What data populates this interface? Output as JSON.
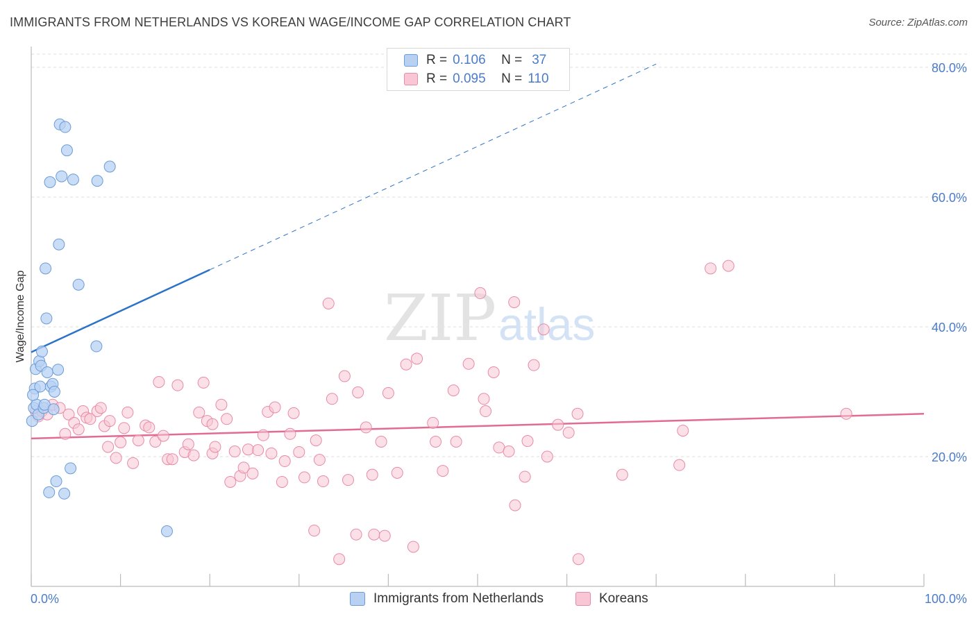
{
  "header": {
    "title": "IMMIGRANTS FROM NETHERLANDS VS KOREAN WAGE/INCOME GAP CORRELATION CHART",
    "source": "Source: ZipAtlas.com"
  },
  "watermark": {
    "zip": "ZIP",
    "atlas": "atlas"
  },
  "legend": {
    "rows": [
      {
        "r_label": "R =",
        "r_value": "0.106",
        "n_label": "N =",
        "n_value": "37"
      },
      {
        "r_label": "R =",
        "r_value": "0.095",
        "n_label": "N =",
        "n_value": "110"
      }
    ]
  },
  "bottom_legend": {
    "items": [
      {
        "label": "Immigrants from Netherlands"
      },
      {
        "label": "Koreans"
      }
    ]
  },
  "colors": {
    "blue_fill": "#b8d1f3",
    "blue_stroke": "#6b9bd8",
    "blue_line": "#2b72c9",
    "pink_fill": "#f8c6d4",
    "pink_stroke": "#e88aa6",
    "pink_line": "#e36a93",
    "tick_label": "#4a7cc9",
    "grid": "#dddddd"
  },
  "chart_data": {
    "type": "scatter",
    "title": "IMMIGRANTS FROM NETHERLANDS VS KOREAN WAGE/INCOME GAP CORRELATION CHART",
    "xlabel": "",
    "ylabel": "Wage/Income Gap",
    "xlim": [
      0,
      100
    ],
    "ylim": [
      0,
      82
    ],
    "x_tick_labels": [
      "0.0%",
      "100.0%"
    ],
    "y_ticks": [
      20,
      40,
      60,
      80
    ],
    "y_tick_labels": [
      "20.0%",
      "40.0%",
      "60.0%",
      "80.0%"
    ],
    "grid": true,
    "legend_position": "top-center",
    "series": [
      {
        "name": "Immigrants from Netherlands",
        "color": "#6b9bd8",
        "points": [
          [
            0.1,
            25.5
          ],
          [
            0.3,
            27.5
          ],
          [
            0.4,
            30.5
          ],
          [
            0.5,
            33.5
          ],
          [
            0.6,
            28.0
          ],
          [
            0.8,
            26.5
          ],
          [
            0.9,
            34.7
          ],
          [
            1.0,
            30.8
          ],
          [
            1.1,
            34.0
          ],
          [
            1.2,
            36.2
          ],
          [
            1.4,
            27.5
          ],
          [
            1.5,
            28.0
          ],
          [
            1.6,
            49.0
          ],
          [
            1.7,
            41.3
          ],
          [
            1.8,
            33.0
          ],
          [
            2.0,
            14.5
          ],
          [
            2.1,
            62.3
          ],
          [
            2.2,
            30.8
          ],
          [
            2.4,
            31.2
          ],
          [
            2.5,
            27.3
          ],
          [
            2.6,
            30.0
          ],
          [
            2.8,
            16.2
          ],
          [
            3.0,
            33.4
          ],
          [
            3.1,
            52.7
          ],
          [
            3.2,
            71.2
          ],
          [
            3.4,
            63.2
          ],
          [
            3.7,
            14.3
          ],
          [
            3.8,
            70.8
          ],
          [
            4.0,
            67.2
          ],
          [
            4.4,
            18.2
          ],
          [
            4.7,
            62.7
          ],
          [
            5.3,
            46.5
          ],
          [
            7.3,
            37.0
          ],
          [
            7.4,
            62.5
          ],
          [
            8.8,
            64.7
          ],
          [
            15.2,
            8.5
          ],
          [
            0.2,
            29.5
          ]
        ]
      },
      {
        "name": "Koreans",
        "color": "#e88aa6",
        "points": [
          [
            0.5,
            27.0
          ],
          [
            0.8,
            26.2
          ],
          [
            1.2,
            27.0
          ],
          [
            1.8,
            26.5
          ],
          [
            2.4,
            28.0
          ],
          [
            3.2,
            27.5
          ],
          [
            3.8,
            23.5
          ],
          [
            4.2,
            26.5
          ],
          [
            4.8,
            25.2
          ],
          [
            5.3,
            24.2
          ],
          [
            5.8,
            27.0
          ],
          [
            6.2,
            26.0
          ],
          [
            6.6,
            25.8
          ],
          [
            7.4,
            27.0
          ],
          [
            7.8,
            27.5
          ],
          [
            8.2,
            24.7
          ],
          [
            8.8,
            25.5
          ],
          [
            9.5,
            19.8
          ],
          [
            10.0,
            22.2
          ],
          [
            10.4,
            24.4
          ],
          [
            10.8,
            26.8
          ],
          [
            11.4,
            19.0
          ],
          [
            12.0,
            22.5
          ],
          [
            12.8,
            24.8
          ],
          [
            13.2,
            24.5
          ],
          [
            13.9,
            22.3
          ],
          [
            14.3,
            31.5
          ],
          [
            14.8,
            23.2
          ],
          [
            15.3,
            19.6
          ],
          [
            15.8,
            19.6
          ],
          [
            16.4,
            31.0
          ],
          [
            17.2,
            20.7
          ],
          [
            17.6,
            21.9
          ],
          [
            18.2,
            20.2
          ],
          [
            18.8,
            26.8
          ],
          [
            19.3,
            31.4
          ],
          [
            19.7,
            25.5
          ],
          [
            20.3,
            20.5
          ],
          [
            20.6,
            21.5
          ],
          [
            21.3,
            28.0
          ],
          [
            21.9,
            25.8
          ],
          [
            22.3,
            16.1
          ],
          [
            22.8,
            20.8
          ],
          [
            23.4,
            17.0
          ],
          [
            23.8,
            18.3
          ],
          [
            24.3,
            21.1
          ],
          [
            24.8,
            17.4
          ],
          [
            25.4,
            21.0
          ],
          [
            26.0,
            23.3
          ],
          [
            26.5,
            26.9
          ],
          [
            26.9,
            20.5
          ],
          [
            27.3,
            27.6
          ],
          [
            28.1,
            16.1
          ],
          [
            28.4,
            19.3
          ],
          [
            29.0,
            23.5
          ],
          [
            29.4,
            26.7
          ],
          [
            30.0,
            20.7
          ],
          [
            30.6,
            16.8
          ],
          [
            31.7,
            8.6
          ],
          [
            31.9,
            22.5
          ],
          [
            32.3,
            19.5
          ],
          [
            32.7,
            16.2
          ],
          [
            33.3,
            43.6
          ],
          [
            33.7,
            28.9
          ],
          [
            34.5,
            4.2
          ],
          [
            35.1,
            32.4
          ],
          [
            35.5,
            16.4
          ],
          [
            36.4,
            8.0
          ],
          [
            36.6,
            29.9
          ],
          [
            37.5,
            24.5
          ],
          [
            38.2,
            17.2
          ],
          [
            38.4,
            8.0
          ],
          [
            39.2,
            22.3
          ],
          [
            39.6,
            7.8
          ],
          [
            40.0,
            29.8
          ],
          [
            41.0,
            17.5
          ],
          [
            42.0,
            34.2
          ],
          [
            42.8,
            6.1
          ],
          [
            43.2,
            35.1
          ],
          [
            45.3,
            22.3
          ],
          [
            46.1,
            17.8
          ],
          [
            47.3,
            30.2
          ],
          [
            47.6,
            22.3
          ],
          [
            49.0,
            34.3
          ],
          [
            50.3,
            45.2
          ],
          [
            50.7,
            28.9
          ],
          [
            50.9,
            27.0
          ],
          [
            51.8,
            33.0
          ],
          [
            52.4,
            21.4
          ],
          [
            53.5,
            20.8
          ],
          [
            54.1,
            43.8
          ],
          [
            54.2,
            12.5
          ],
          [
            55.3,
            16.9
          ],
          [
            55.6,
            22.4
          ],
          [
            56.3,
            34.1
          ],
          [
            57.4,
            39.6
          ],
          [
            57.8,
            20.0
          ],
          [
            59.0,
            24.9
          ],
          [
            60.2,
            23.7
          ],
          [
            61.2,
            26.6
          ],
          [
            61.3,
            4.2
          ],
          [
            66.2,
            17.2
          ],
          [
            72.6,
            18.7
          ],
          [
            73.0,
            24.0
          ],
          [
            76.1,
            49.0
          ],
          [
            78.1,
            49.4
          ],
          [
            91.3,
            26.6
          ],
          [
            8.6,
            21.5
          ],
          [
            20.3,
            25.0
          ],
          [
            45.0,
            25.2
          ]
        ]
      }
    ],
    "trendlines": [
      {
        "series": "Immigrants from Netherlands",
        "style": "solid",
        "x": [
          0,
          20
        ],
        "y": [
          36.1,
          48.8
        ]
      },
      {
        "series": "Immigrants from Netherlands",
        "style": "dashed",
        "x": [
          20,
          70
        ],
        "y": [
          48.8,
          80.5
        ]
      },
      {
        "series": "Koreans",
        "style": "solid",
        "x": [
          0,
          100
        ],
        "y": [
          22.8,
          26.6
        ]
      }
    ]
  }
}
